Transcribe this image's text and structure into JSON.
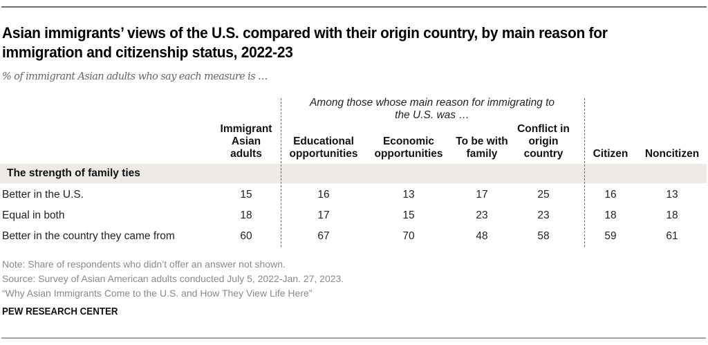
{
  "chart_data": {
    "type": "table",
    "title": "Asian immigrants’ views of the U.S. compared with their origin country, by main reason for immigration and citizenship status, 2022-23",
    "subtitle": "% of immigrant Asian adults who say each measure is …",
    "group_label": "Among those whose main reason for immigrating to the U.S. was …",
    "columns": [
      {
        "key": "all",
        "label": "Immigrant Asian adults",
        "lines": [
          "Immigrant",
          "Asian",
          "adults"
        ]
      },
      {
        "key": "edu",
        "label": "Educational opportunities",
        "lines": [
          "Educational",
          "opportunities"
        ]
      },
      {
        "key": "econ",
        "label": "Economic opportunities",
        "lines": [
          "Economic",
          "opportunities"
        ]
      },
      {
        "key": "family",
        "label": "To be with family",
        "lines": [
          "To be with",
          "family"
        ]
      },
      {
        "key": "conflict",
        "label": "Conflict in origin country",
        "lines": [
          "Conflict in",
          "origin",
          "country"
        ]
      },
      {
        "key": "citizen",
        "label": "Citizen",
        "lines": [
          "Citizen"
        ]
      },
      {
        "key": "noncitizen",
        "label": "Noncitizen",
        "lines": [
          "Noncitizen"
        ]
      }
    ],
    "section": "The strength of family ties",
    "rows": [
      {
        "label": "Better in the U.S.",
        "values": [
          15,
          16,
          13,
          17,
          25,
          16,
          13
        ]
      },
      {
        "label": "Equal in both",
        "values": [
          18,
          17,
          15,
          23,
          23,
          18,
          18
        ]
      },
      {
        "label": "Better in the country they came from",
        "values": [
          60,
          67,
          70,
          48,
          58,
          59,
          61
        ]
      }
    ]
  },
  "notes": {
    "note": "Note: Share of respondents who didn’t offer an answer not shown.",
    "source": "Source: Survey of Asian American adults conducted July 5, 2022-Jan. 27, 2023.",
    "report": "“Why Asian Immigrants Come to the U.S. and How They View Life Here”"
  },
  "brand": "PEW RESEARCH CENTER",
  "colors": {
    "band": "#eeebe6",
    "note_text": "#8a8a8a",
    "divider": "#6a6a6a"
  }
}
